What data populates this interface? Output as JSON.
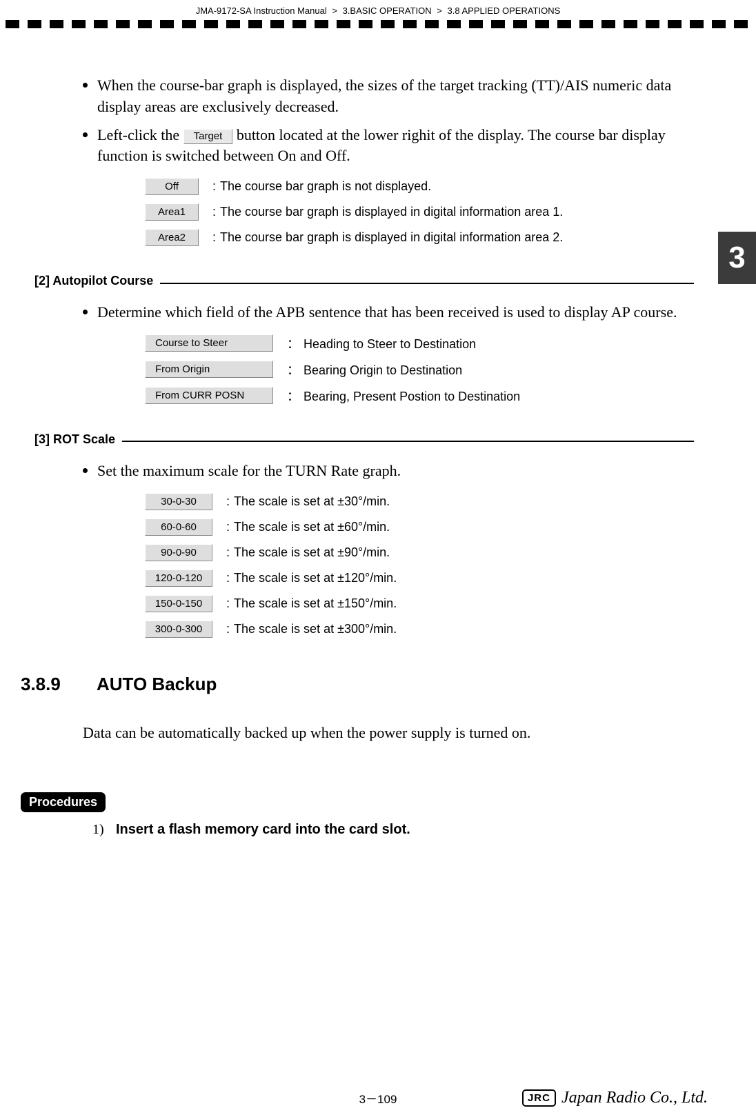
{
  "breadcrumb": {
    "manual": "JMA-9172-SA Instruction Manual",
    "chapter": "3.BASIC OPERATION",
    "section": "3.8  APPLIED OPERATIONS"
  },
  "side_tab": "3",
  "bullets_top": {
    "b1": "When the course-bar graph is displayed, the sizes of the target tracking (TT)/AIS numeric data display areas are exclusively decreased.",
    "b2a": "Left-click the ",
    "b2_btn": "Target",
    "b2b": " button located at the lower righit of the display. The course bar display function is switched between On and Off."
  },
  "course_bar_options": [
    {
      "btn": "Off",
      "desc": "The course bar graph is not displayed."
    },
    {
      "btn": "Area1",
      "desc": "The course bar graph is displayed in digital information area 1."
    },
    {
      "btn": "Area2",
      "desc": "The course bar graph is displayed in digital information area 2."
    }
  ],
  "sec2": {
    "label": "[2] Autopilot Course",
    "bullet": "Determine which field of the APB sentence that has been received is used to display AP course.",
    "options": [
      {
        "btn": "Course to Steer",
        "desc": "Heading to Steer to Destination"
      },
      {
        "btn": "From Origin",
        "desc": "Bearing Origin to Destination"
      },
      {
        "btn": "From CURR POSN",
        "desc": "Bearing, Present Postion to Destination"
      }
    ]
  },
  "sec3": {
    "label": "[3] ROT Scale",
    "bullet": "Set the maximum scale for the TURN Rate graph.",
    "options": [
      {
        "btn": "30-0-30",
        "desc": "The scale is set at ±30°/min."
      },
      {
        "btn": "60-0-60",
        "desc": "The scale is set at ±60°/min."
      },
      {
        "btn": "90-0-90",
        "desc": "The scale is set at ±90°/min."
      },
      {
        "btn": "120-0-120",
        "desc": "The scale is set at ±120°/min."
      },
      {
        "btn": "150-0-150",
        "desc": "The scale is set at ±150°/min."
      },
      {
        "btn": "300-0-300",
        "desc": "The scale is set at ±300°/min."
      }
    ]
  },
  "sec389": {
    "num": "3.8.9",
    "title": "AUTO Backup",
    "para": "Data can be automatically backed up when the power supply is turned on."
  },
  "procedures": {
    "label": "Procedures",
    "step_num": "1)",
    "step_text": "Insert a flash memory card into the card slot."
  },
  "footer": {
    "page": "3－109",
    "jrc": "JRC",
    "company": "Japan Radio Co., Ltd."
  }
}
